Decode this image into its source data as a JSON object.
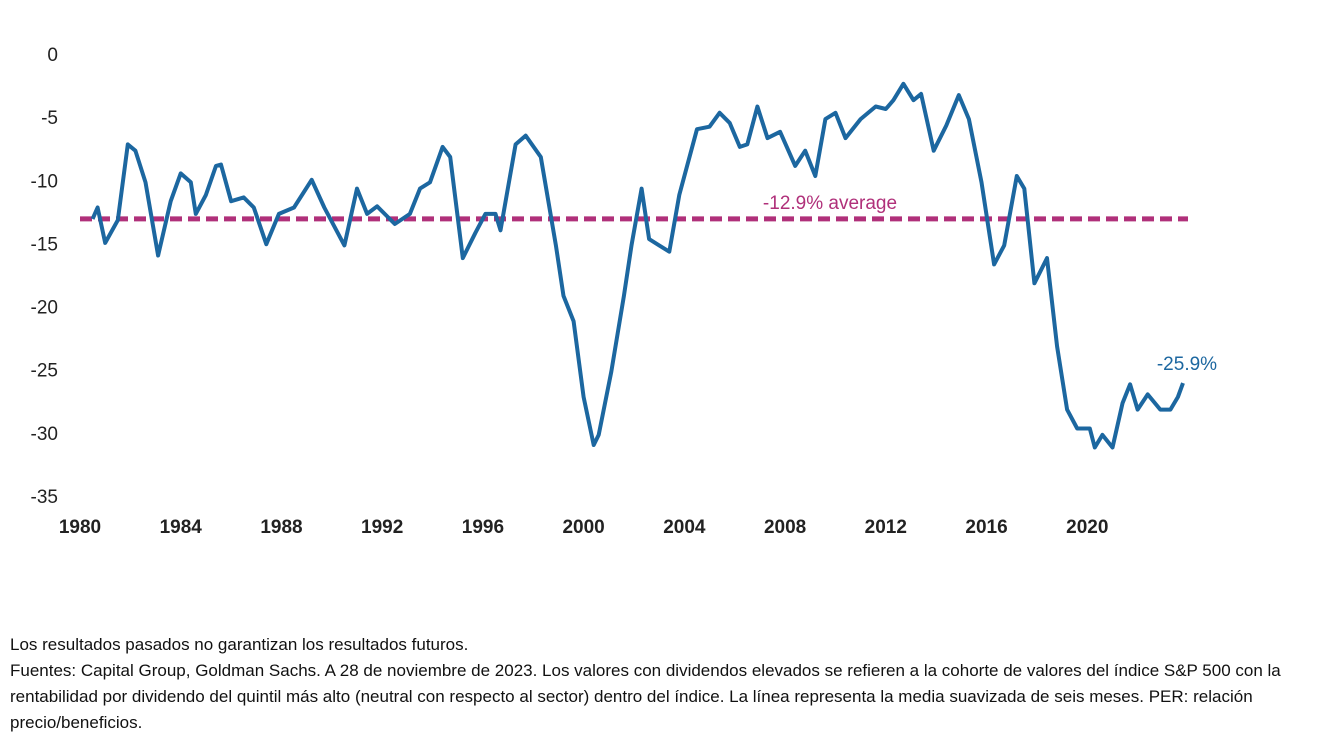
{
  "chart_data": {
    "type": "line",
    "x": [
      1980.5,
      1980.7,
      1981.0,
      1981.5,
      1981.9,
      1982.2,
      1982.6,
      1983.1,
      1983.6,
      1984.0,
      1984.4,
      1984.6,
      1985.0,
      1985.4,
      1985.6,
      1986.0,
      1986.5,
      1986.9,
      1987.4,
      1987.9,
      1988.5,
      1989.2,
      1989.7,
      1990.5,
      1991.0,
      1991.4,
      1991.8,
      1992.5,
      1993.1,
      1993.5,
      1993.9,
      1994.4,
      1994.7,
      1995.2,
      1995.7,
      1996.1,
      1996.5,
      1996.7,
      1997.3,
      1997.7,
      1998.3,
      1998.9,
      1999.2,
      1999.6,
      2000.0,
      2000.4,
      2000.6,
      2001.1,
      2001.6,
      2001.9,
      2002.3,
      2002.6,
      2003.0,
      2003.4,
      2003.8,
      2004.5,
      2005.0,
      2005.4,
      2005.8,
      2006.2,
      2006.5,
      2006.9,
      2007.3,
      2007.8,
      2008.4,
      2008.8,
      2009.2,
      2009.6,
      2010.0,
      2010.4,
      2011.0,
      2011.6,
      2012.0,
      2012.3,
      2012.7,
      2013.1,
      2013.4,
      2013.9,
      2014.4,
      2014.9,
      2015.3,
      2015.8,
      2016.3,
      2016.7,
      2017.2,
      2017.5,
      2017.9,
      2018.4,
      2018.8,
      2019.2,
      2019.6,
      2020.1,
      2020.3,
      2020.6,
      2021.0,
      2021.4,
      2021.7,
      2022.0,
      2022.4,
      2022.9,
      2023.3,
      2023.6,
      2023.8
    ],
    "values": [
      -12.9,
      -12,
      -14.8,
      -13,
      -7,
      -7.5,
      -10,
      -15.8,
      -11.5,
      -9.3,
      -10,
      -12.5,
      -11,
      -8.7,
      -8.6,
      -11.5,
      -11.2,
      -12,
      -14.9,
      -12.5,
      -12,
      -9.8,
      -12,
      -15,
      -10.5,
      -12.5,
      -11.9,
      -13.3,
      -12.5,
      -10.5,
      -10,
      -7.2,
      -8,
      -16,
      -14,
      -12.5,
      -12.5,
      -13.8,
      -7,
      -6.3,
      -8,
      -15,
      -19,
      -21,
      -27,
      -30.8,
      -30,
      -25,
      -19,
      -15,
      -10.5,
      -14.5,
      -15,
      -15.5,
      -11,
      -5.8,
      -5.6,
      -4.5,
      -5.3,
      -7.2,
      -7,
      -4,
      -6.5,
      -6,
      -8.7,
      -7.5,
      -9.5,
      -5,
      -4.5,
      -6.5,
      -5,
      -4,
      -4.2,
      -3.5,
      -2.2,
      -3.5,
      -3,
      -7.5,
      -5.5,
      -3.1,
      -5,
      -10,
      -16.5,
      -15,
      -9.5,
      -10.5,
      -18,
      -16,
      -23,
      -28,
      -29.5,
      -29.5,
      -31,
      -30,
      -31,
      -27.5,
      -26,
      -28,
      -26.8,
      -28,
      -28,
      -27,
      -25.9
    ],
    "value_labels": [
      null,
      null,
      null,
      null,
      null,
      null,
      null,
      null,
      null,
      null,
      null,
      null,
      null,
      null,
      null,
      null,
      null,
      null,
      null,
      null,
      null,
      null,
      null,
      null,
      null,
      null,
      null,
      null,
      null,
      null,
      null,
      null,
      null,
      null,
      null,
      null,
      null,
      null,
      null,
      null,
      null,
      null,
      null,
      null,
      null,
      null,
      null,
      null,
      null,
      null,
      null,
      null,
      null,
      null,
      null,
      null,
      null,
      null,
      null,
      null,
      null,
      null,
      null,
      null,
      null,
      null,
      null,
      null,
      null,
      null,
      null,
      null,
      null,
      null,
      null,
      null,
      null,
      null,
      null,
      null,
      null,
      null,
      null,
      null,
      null,
      null,
      null,
      null,
      null,
      null,
      null,
      null,
      null,
      null,
      null,
      null,
      null,
      null,
      null,
      null,
      null,
      null,
      "-25.9%"
    ],
    "color": "#1c67a0",
    "average": {
      "value": -12.9,
      "label": "-12.9% average",
      "color": "#b0307a"
    },
    "xlim": [
      1980,
      2024
    ],
    "xticks": [
      1980,
      1984,
      1988,
      1992,
      1996,
      2000,
      2004,
      2008,
      2012,
      2016,
      2020
    ],
    "ylim": [
      -35,
      0
    ],
    "yticks": [
      0,
      -5,
      -10,
      -15,
      -20,
      -25,
      -30,
      -35
    ]
  },
  "footnote": [
    "Los resultados pasados no garantizan los resultados futuros.",
    "Fuentes: Capital Group, Goldman Sachs. A 28 de noviembre de 2023. Los valores con dividendos elevados se refieren a la cohorte de valores del índice S&P 500 con la rentabilidad por dividendo del quintil más alto (neutral con respecto al sector) dentro del índice. La línea representa la media suavizada de seis meses. PER: relación precio/beneficios."
  ]
}
